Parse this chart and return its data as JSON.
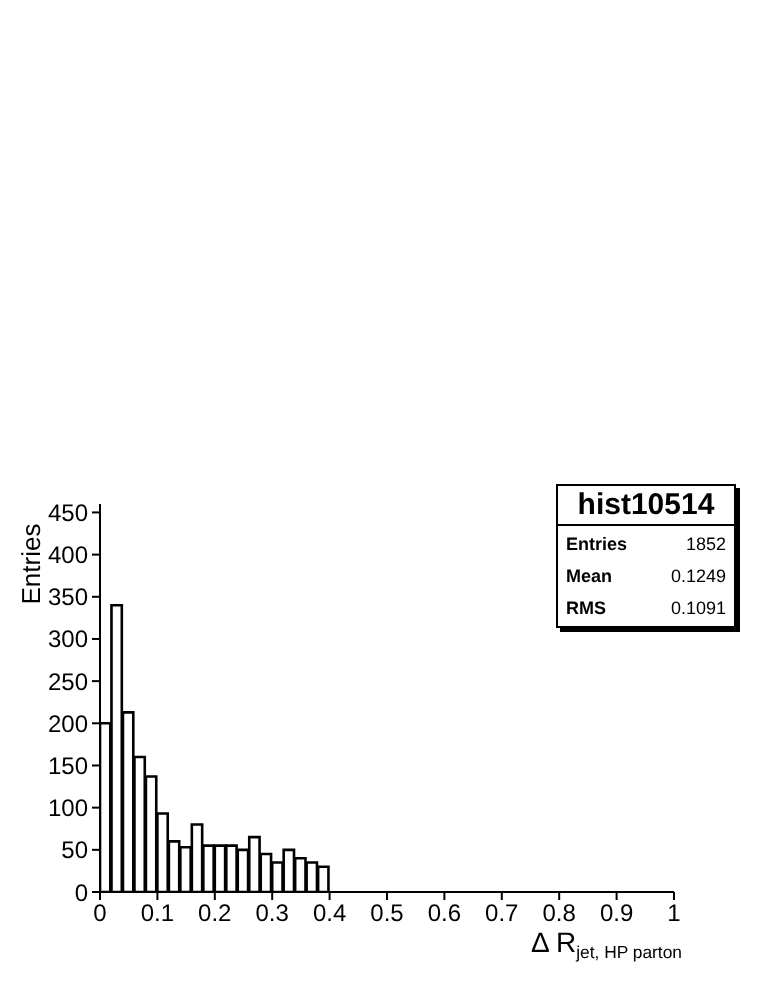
{
  "chart_data": {
    "type": "histogram",
    "title": "hist10514",
    "xlabel": "Δ R$_{jet, HP parton}$",
    "ylabel": "Entries",
    "bins": [
      0,
      0.02,
      0.04,
      0.06,
      0.08,
      0.1,
      0.12,
      0.14,
      0.16,
      0.18,
      0.2,
      0.22,
      0.24,
      0.26,
      0.28,
      0.3,
      0.32,
      0.34,
      0.36,
      0.38,
      0.4
    ],
    "values": [
      200,
      340,
      213,
      160,
      137,
      93,
      60,
      53,
      80,
      55,
      55,
      55,
      50,
      65,
      45,
      35,
      50,
      40,
      35,
      30
    ],
    "color": "#000000",
    "xlim": [
      0,
      1
    ],
    "xticks": [
      0,
      0.1,
      0.2,
      0.3,
      0.4,
      0.5,
      0.6,
      0.7,
      0.8,
      0.9,
      1
    ],
    "ylim": [
      0,
      460
    ],
    "yticks": [
      0,
      50,
      100,
      150,
      200,
      250,
      300,
      350,
      400,
      450
    ],
    "grid": false,
    "legend": false,
    "annotations": [
      "Entries",
      "1852",
      "Mean",
      "0.1249",
      "RMS",
      "0.1091"
    ]
  }
}
